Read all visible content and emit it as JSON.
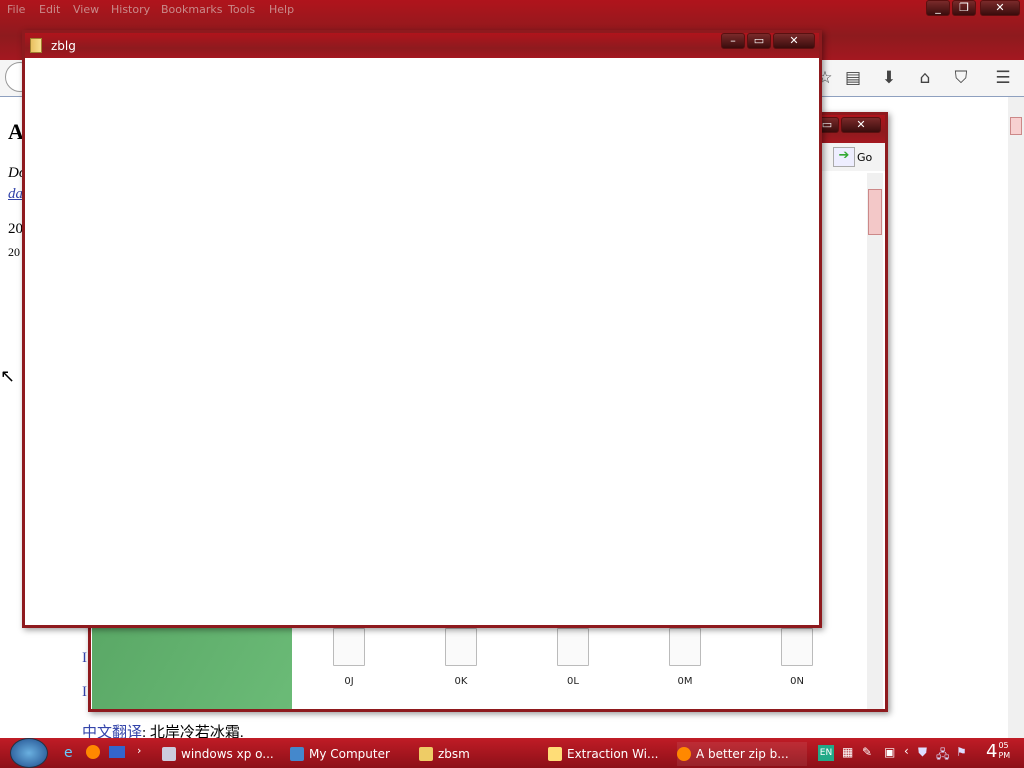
{
  "browser": {
    "menu": [
      "File",
      "Edit",
      "View",
      "History",
      "Bookmarks",
      "Tools",
      "Help"
    ],
    "toolbar_icons": [
      "star-icon",
      "reading-list-icon",
      "download-icon",
      "home-icon",
      "pocket-icon",
      "menu-icon"
    ],
    "page": {
      "heading": "A",
      "italic": "Do",
      "link": "da",
      "line1": "20",
      "line2": "20",
      "link_a": "I",
      "link_b": "I",
      "footer_link": "中文翻译",
      "footer_text": ": 北岸冷若冰霜."
    }
  },
  "explorer_window": {
    "title": "zbsm",
    "go_label": "Go",
    "files": [
      "0J",
      "0K",
      "0L",
      "0M",
      "0N"
    ]
  },
  "front_window": {
    "title": "zblg"
  },
  "taskbar": {
    "tasks": [
      {
        "label": "windows xp o..."
      },
      {
        "label": "My Computer"
      },
      {
        "label": "zbsm"
      },
      {
        "label": "Extraction Wi..."
      },
      {
        "label": "A better zip b..."
      }
    ],
    "lang": "EN",
    "clock": {
      "hour": "4",
      "minute": "05",
      "ampm": "PM"
    }
  },
  "colors": {
    "theme_red": "#8e1a1e",
    "link": "#3344aa"
  }
}
